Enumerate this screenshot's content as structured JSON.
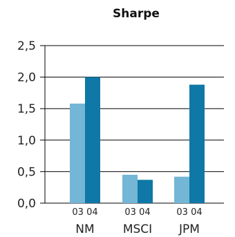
{
  "chart_data": {
    "type": "bar",
    "title": "Sharpe",
    "categories": [
      "NM",
      "MSCI",
      "JPM"
    ],
    "sub_labels": [
      "03",
      "04"
    ],
    "series": [
      {
        "values": [
          1.58,
          0.45,
          0.42
        ],
        "color": "#74b6d6"
      },
      {
        "values": [
          2.0,
          0.37,
          1.88
        ],
        "color": "#0f78a6"
      }
    ],
    "ylim": [
      0,
      2.5
    ],
    "yticks": [
      "0,0",
      "0,5",
      "1,0",
      "1,5",
      "2,0",
      "2,5"
    ],
    "grid": true
  }
}
